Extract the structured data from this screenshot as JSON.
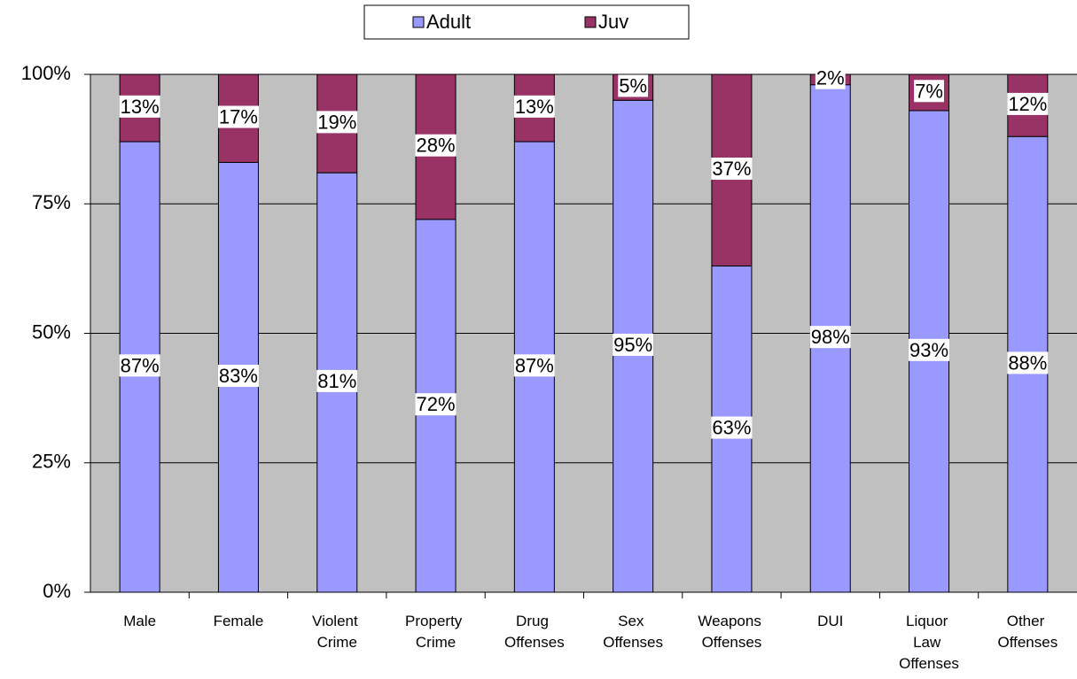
{
  "chart_data": {
    "type": "stacked_bar",
    "categories": [
      "Male",
      "Female",
      "Violent Crime",
      "Property Crime",
      "Drug Offenses",
      "Sex Offenses",
      "Weapons Offenses",
      "DUI",
      "Liquor Law Offenses",
      "Other Offenses"
    ],
    "series": [
      {
        "name": "Adult",
        "color": "#9999ff",
        "values": [
          87,
          83,
          81,
          72,
          87,
          95,
          63,
          98,
          93,
          88
        ],
        "value_labels": [
          "87%",
          "83%",
          "81%",
          "72%",
          "87%",
          "95%",
          "63%",
          "98%",
          "93%",
          "88%"
        ]
      },
      {
        "name": "Juv",
        "color": "#993366",
        "values": [
          13,
          17,
          19,
          28,
          13,
          5,
          37,
          2,
          7,
          12
        ],
        "value_labels": [
          "13%",
          "17%",
          "19%",
          "28%",
          "13%",
          "5%",
          "37%",
          "2%",
          "7%",
          "12%"
        ]
      }
    ],
    "ylim": [
      0,
      100
    ],
    "yticks": [
      {
        "value": 0,
        "label": "0%"
      },
      {
        "value": 25,
        "label": "25%"
      },
      {
        "value": 50,
        "label": "50%"
      },
      {
        "value": 75,
        "label": "75%"
      },
      {
        "value": 100,
        "label": "100%"
      }
    ],
    "grid": true,
    "legend": "top",
    "plot_background": "#c0c0c0"
  }
}
